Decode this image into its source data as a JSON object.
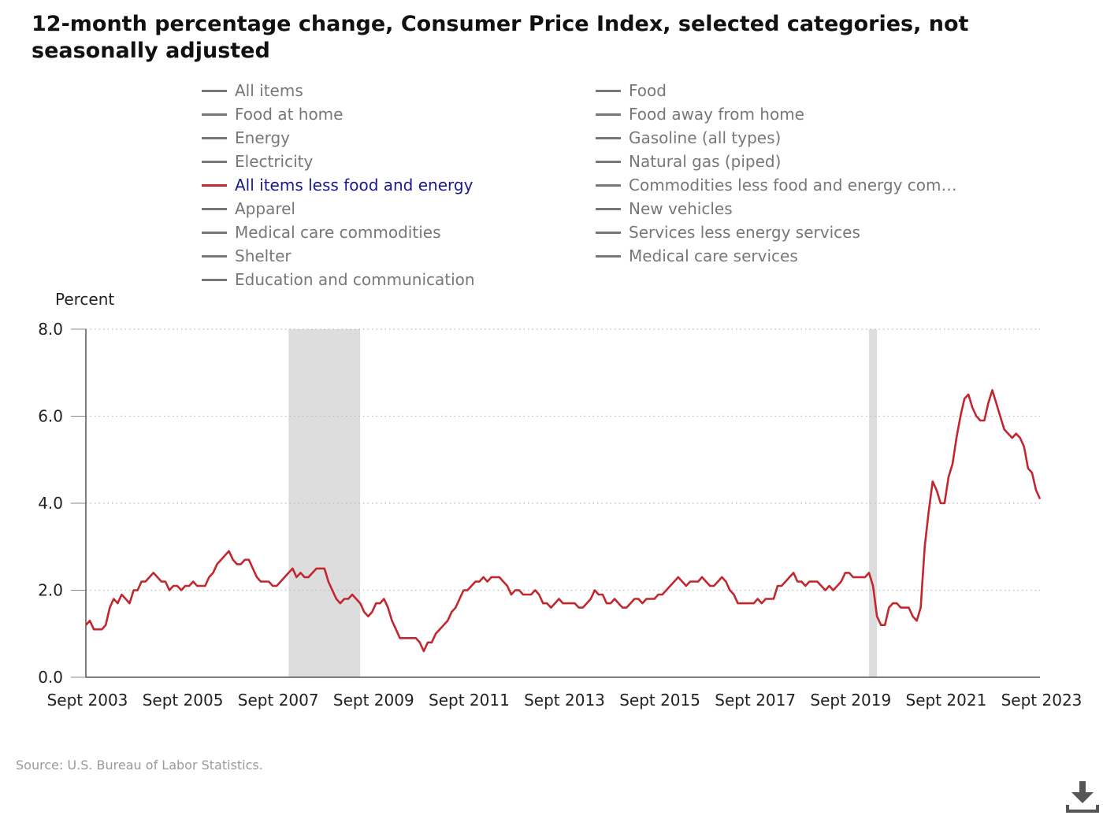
{
  "title": "12-month percentage change, Consumer Price Index, selected categories, not seasonally adjusted",
  "source": "Source: U.S. Bureau of Labor Statistics.",
  "icons": {
    "download": "download-icon"
  },
  "colors": {
    "active_series": "#c1272d",
    "inactive_series": "#777777",
    "active_label": "#1a1a8c",
    "recession": "#dddddd",
    "grid": "#bbbbbb"
  },
  "legend": {
    "items": [
      {
        "label": "All items",
        "active": false
      },
      {
        "label": "Food",
        "active": false
      },
      {
        "label": "Food at home",
        "active": false
      },
      {
        "label": "Food away from home",
        "active": false
      },
      {
        "label": "Energy",
        "active": false
      },
      {
        "label": "Gasoline (all types)",
        "active": false
      },
      {
        "label": "Electricity",
        "active": false
      },
      {
        "label": "Natural gas (piped)",
        "active": false
      },
      {
        "label": "All items less food and energy",
        "active": true
      },
      {
        "label": "Commodities less food and energy com…",
        "active": false
      },
      {
        "label": "Apparel",
        "active": false
      },
      {
        "label": "New vehicles",
        "active": false
      },
      {
        "label": "Medical care commodities",
        "active": false
      },
      {
        "label": "Services less energy services",
        "active": false
      },
      {
        "label": "Shelter",
        "active": false
      },
      {
        "label": "Medical care services",
        "active": false
      },
      {
        "label": "Education and communication",
        "active": false
      }
    ]
  },
  "chart_data": {
    "type": "line",
    "ylabel": "Percent",
    "xlabel": "",
    "ylim": [
      0,
      8
    ],
    "yticks": [
      "0.0",
      "2.0",
      "4.0",
      "6.0",
      "8.0"
    ],
    "xlim": [
      "2003-09",
      "2023-09"
    ],
    "xticks": [
      "Sept 2003",
      "Sept 2005",
      "Sept 2007",
      "Sept 2009",
      "Sept 2011",
      "Sept 2013",
      "Sept 2015",
      "Sept 2017",
      "Sept 2019",
      "Sept 2021",
      "Sept 2023"
    ],
    "grid": true,
    "recessions": [
      {
        "start": "2007-12",
        "end": "2009-06"
      },
      {
        "start": "2020-02",
        "end": "2020-04"
      }
    ],
    "series": [
      {
        "name": "All items less food and energy",
        "points": [
          [
            "2003-09",
            1.2
          ],
          [
            "2003-10",
            1.3
          ],
          [
            "2003-11",
            1.1
          ],
          [
            "2003-12",
            1.1
          ],
          [
            "2004-01",
            1.1
          ],
          [
            "2004-02",
            1.2
          ],
          [
            "2004-03",
            1.6
          ],
          [
            "2004-04",
            1.8
          ],
          [
            "2004-05",
            1.7
          ],
          [
            "2004-06",
            1.9
          ],
          [
            "2004-07",
            1.8
          ],
          [
            "2004-08",
            1.7
          ],
          [
            "2004-09",
            2.0
          ],
          [
            "2004-10",
            2.0
          ],
          [
            "2004-11",
            2.2
          ],
          [
            "2004-12",
            2.2
          ],
          [
            "2005-01",
            2.3
          ],
          [
            "2005-02",
            2.4
          ],
          [
            "2005-03",
            2.3
          ],
          [
            "2005-04",
            2.2
          ],
          [
            "2005-05",
            2.2
          ],
          [
            "2005-06",
            2.0
          ],
          [
            "2005-07",
            2.1
          ],
          [
            "2005-08",
            2.1
          ],
          [
            "2005-09",
            2.0
          ],
          [
            "2005-10",
            2.1
          ],
          [
            "2005-11",
            2.1
          ],
          [
            "2005-12",
            2.2
          ],
          [
            "2006-01",
            2.1
          ],
          [
            "2006-02",
            2.1
          ],
          [
            "2006-03",
            2.1
          ],
          [
            "2006-04",
            2.3
          ],
          [
            "2006-05",
            2.4
          ],
          [
            "2006-06",
            2.6
          ],
          [
            "2006-07",
            2.7
          ],
          [
            "2006-08",
            2.8
          ],
          [
            "2006-09",
            2.9
          ],
          [
            "2006-10",
            2.7
          ],
          [
            "2006-11",
            2.6
          ],
          [
            "2006-12",
            2.6
          ],
          [
            "2007-01",
            2.7
          ],
          [
            "2007-02",
            2.7
          ],
          [
            "2007-03",
            2.5
          ],
          [
            "2007-04",
            2.3
          ],
          [
            "2007-05",
            2.2
          ],
          [
            "2007-06",
            2.2
          ],
          [
            "2007-07",
            2.2
          ],
          [
            "2007-08",
            2.1
          ],
          [
            "2007-09",
            2.1
          ],
          [
            "2007-10",
            2.2
          ],
          [
            "2007-11",
            2.3
          ],
          [
            "2007-12",
            2.4
          ],
          [
            "2008-01",
            2.5
          ],
          [
            "2008-02",
            2.3
          ],
          [
            "2008-03",
            2.4
          ],
          [
            "2008-04",
            2.3
          ],
          [
            "2008-05",
            2.3
          ],
          [
            "2008-06",
            2.4
          ],
          [
            "2008-07",
            2.5
          ],
          [
            "2008-08",
            2.5
          ],
          [
            "2008-09",
            2.5
          ],
          [
            "2008-10",
            2.2
          ],
          [
            "2008-11",
            2.0
          ],
          [
            "2008-12",
            1.8
          ],
          [
            "2009-01",
            1.7
          ],
          [
            "2009-02",
            1.8
          ],
          [
            "2009-03",
            1.8
          ],
          [
            "2009-04",
            1.9
          ],
          [
            "2009-05",
            1.8
          ],
          [
            "2009-06",
            1.7
          ],
          [
            "2009-07",
            1.5
          ],
          [
            "2009-08",
            1.4
          ],
          [
            "2009-09",
            1.5
          ],
          [
            "2009-10",
            1.7
          ],
          [
            "2009-11",
            1.7
          ],
          [
            "2009-12",
            1.8
          ],
          [
            "2010-01",
            1.6
          ],
          [
            "2010-02",
            1.3
          ],
          [
            "2010-03",
            1.1
          ],
          [
            "2010-04",
            0.9
          ],
          [
            "2010-05",
            0.9
          ],
          [
            "2010-06",
            0.9
          ],
          [
            "2010-07",
            0.9
          ],
          [
            "2010-08",
            0.9
          ],
          [
            "2010-09",
            0.8
          ],
          [
            "2010-10",
            0.6
          ],
          [
            "2010-11",
            0.8
          ],
          [
            "2010-12",
            0.8
          ],
          [
            "2011-01",
            1.0
          ],
          [
            "2011-02",
            1.1
          ],
          [
            "2011-03",
            1.2
          ],
          [
            "2011-04",
            1.3
          ],
          [
            "2011-05",
            1.5
          ],
          [
            "2011-06",
            1.6
          ],
          [
            "2011-07",
            1.8
          ],
          [
            "2011-08",
            2.0
          ],
          [
            "2011-09",
            2.0
          ],
          [
            "2011-10",
            2.1
          ],
          [
            "2011-11",
            2.2
          ],
          [
            "2011-12",
            2.2
          ],
          [
            "2012-01",
            2.3
          ],
          [
            "2012-02",
            2.2
          ],
          [
            "2012-03",
            2.3
          ],
          [
            "2012-04",
            2.3
          ],
          [
            "2012-05",
            2.3
          ],
          [
            "2012-06",
            2.2
          ],
          [
            "2012-07",
            2.1
          ],
          [
            "2012-08",
            1.9
          ],
          [
            "2012-09",
            2.0
          ],
          [
            "2012-10",
            2.0
          ],
          [
            "2012-11",
            1.9
          ],
          [
            "2012-12",
            1.9
          ],
          [
            "2013-01",
            1.9
          ],
          [
            "2013-02",
            2.0
          ],
          [
            "2013-03",
            1.9
          ],
          [
            "2013-04",
            1.7
          ],
          [
            "2013-05",
            1.7
          ],
          [
            "2013-06",
            1.6
          ],
          [
            "2013-07",
            1.7
          ],
          [
            "2013-08",
            1.8
          ],
          [
            "2013-09",
            1.7
          ],
          [
            "2013-10",
            1.7
          ],
          [
            "2013-11",
            1.7
          ],
          [
            "2013-12",
            1.7
          ],
          [
            "2014-01",
            1.6
          ],
          [
            "2014-02",
            1.6
          ],
          [
            "2014-03",
            1.7
          ],
          [
            "2014-04",
            1.8
          ],
          [
            "2014-05",
            2.0
          ],
          [
            "2014-06",
            1.9
          ],
          [
            "2014-07",
            1.9
          ],
          [
            "2014-08",
            1.7
          ],
          [
            "2014-09",
            1.7
          ],
          [
            "2014-10",
            1.8
          ],
          [
            "2014-11",
            1.7
          ],
          [
            "2014-12",
            1.6
          ],
          [
            "2015-01",
            1.6
          ],
          [
            "2015-02",
            1.7
          ],
          [
            "2015-03",
            1.8
          ],
          [
            "2015-04",
            1.8
          ],
          [
            "2015-05",
            1.7
          ],
          [
            "2015-06",
            1.8
          ],
          [
            "2015-07",
            1.8
          ],
          [
            "2015-08",
            1.8
          ],
          [
            "2015-09",
            1.9
          ],
          [
            "2015-10",
            1.9
          ],
          [
            "2015-11",
            2.0
          ],
          [
            "2015-12",
            2.1
          ],
          [
            "2016-01",
            2.2
          ],
          [
            "2016-02",
            2.3
          ],
          [
            "2016-03",
            2.2
          ],
          [
            "2016-04",
            2.1
          ],
          [
            "2016-05",
            2.2
          ],
          [
            "2016-06",
            2.2
          ],
          [
            "2016-07",
            2.2
          ],
          [
            "2016-08",
            2.3
          ],
          [
            "2016-09",
            2.2
          ],
          [
            "2016-10",
            2.1
          ],
          [
            "2016-11",
            2.1
          ],
          [
            "2016-12",
            2.2
          ],
          [
            "2017-01",
            2.3
          ],
          [
            "2017-02",
            2.2
          ],
          [
            "2017-03",
            2.0
          ],
          [
            "2017-04",
            1.9
          ],
          [
            "2017-05",
            1.7
          ],
          [
            "2017-06",
            1.7
          ],
          [
            "2017-07",
            1.7
          ],
          [
            "2017-08",
            1.7
          ],
          [
            "2017-09",
            1.7
          ],
          [
            "2017-10",
            1.8
          ],
          [
            "2017-11",
            1.7
          ],
          [
            "2017-12",
            1.8
          ],
          [
            "2018-01",
            1.8
          ],
          [
            "2018-02",
            1.8
          ],
          [
            "2018-03",
            2.1
          ],
          [
            "2018-04",
            2.1
          ],
          [
            "2018-05",
            2.2
          ],
          [
            "2018-06",
            2.3
          ],
          [
            "2018-07",
            2.4
          ],
          [
            "2018-08",
            2.2
          ],
          [
            "2018-09",
            2.2
          ],
          [
            "2018-10",
            2.1
          ],
          [
            "2018-11",
            2.2
          ],
          [
            "2018-12",
            2.2
          ],
          [
            "2019-01",
            2.2
          ],
          [
            "2019-02",
            2.1
          ],
          [
            "2019-03",
            2.0
          ],
          [
            "2019-04",
            2.1
          ],
          [
            "2019-05",
            2.0
          ],
          [
            "2019-06",
            2.1
          ],
          [
            "2019-07",
            2.2
          ],
          [
            "2019-08",
            2.4
          ],
          [
            "2019-09",
            2.4
          ],
          [
            "2019-10",
            2.3
          ],
          [
            "2019-11",
            2.3
          ],
          [
            "2019-12",
            2.3
          ],
          [
            "2020-01",
            2.3
          ],
          [
            "2020-02",
            2.4
          ],
          [
            "2020-03",
            2.1
          ],
          [
            "2020-04",
            1.4
          ],
          [
            "2020-05",
            1.2
          ],
          [
            "2020-06",
            1.2
          ],
          [
            "2020-07",
            1.6
          ],
          [
            "2020-08",
            1.7
          ],
          [
            "2020-09",
            1.7
          ],
          [
            "2020-10",
            1.6
          ],
          [
            "2020-11",
            1.6
          ],
          [
            "2020-12",
            1.6
          ],
          [
            "2021-01",
            1.4
          ],
          [
            "2021-02",
            1.3
          ],
          [
            "2021-03",
            1.6
          ],
          [
            "2021-04",
            3.0
          ],
          [
            "2021-05",
            3.8
          ],
          [
            "2021-06",
            4.5
          ],
          [
            "2021-07",
            4.3
          ],
          [
            "2021-08",
            4.0
          ],
          [
            "2021-09",
            4.0
          ],
          [
            "2021-10",
            4.6
          ],
          [
            "2021-11",
            4.9
          ],
          [
            "2021-12",
            5.5
          ],
          [
            "2022-01",
            6.0
          ],
          [
            "2022-02",
            6.4
          ],
          [
            "2022-03",
            6.5
          ],
          [
            "2022-04",
            6.2
          ],
          [
            "2022-05",
            6.0
          ],
          [
            "2022-06",
            5.9
          ],
          [
            "2022-07",
            5.9
          ],
          [
            "2022-08",
            6.3
          ],
          [
            "2022-09",
            6.6
          ],
          [
            "2022-10",
            6.3
          ],
          [
            "2022-11",
            6.0
          ],
          [
            "2022-12",
            5.7
          ],
          [
            "2023-01",
            5.6
          ],
          [
            "2023-02",
            5.5
          ],
          [
            "2023-03",
            5.6
          ],
          [
            "2023-04",
            5.5
          ],
          [
            "2023-05",
            5.3
          ],
          [
            "2023-06",
            4.8
          ],
          [
            "2023-07",
            4.7
          ],
          [
            "2023-08",
            4.3
          ],
          [
            "2023-09",
            4.1
          ]
        ]
      }
    ]
  }
}
